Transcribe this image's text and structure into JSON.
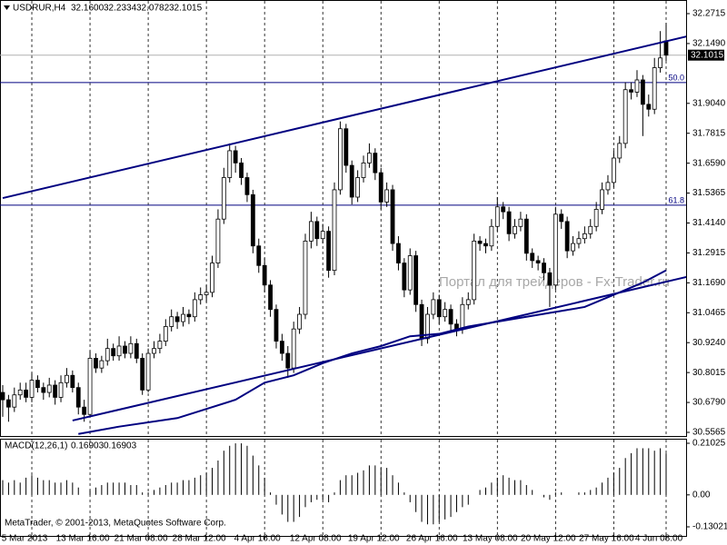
{
  "chart_data": {
    "type": "candlestick",
    "header": {
      "symbol": "USDRUR,H4",
      "ohlc": [
        "32.1600",
        "32.2334",
        "32.0782",
        "32.1015"
      ]
    },
    "watermark": "Портал для трейдеров - Fx-Trader.ru",
    "footer": "MetaTrader, © 2001-2013, MetaQuotes Software Corp.",
    "categories": [
      null,
      null,
      null,
      null,
      null,
      "5 Mar 2013",
      null,
      null,
      null,
      null,
      null,
      null,
      null,
      null,
      null,
      "13 Mar 16:00",
      null,
      null,
      null,
      null,
      null,
      null,
      null,
      null,
      null,
      "21 Mar 08:00",
      null,
      null,
      null,
      null,
      null,
      null,
      null,
      null,
      null,
      "28 Mar 12:00",
      null,
      null,
      null,
      null,
      null,
      null,
      null,
      null,
      null,
      "4 Apr 16:00",
      null,
      null,
      null,
      null,
      null,
      null,
      null,
      null,
      null,
      "12 Apr 08:00",
      null,
      null,
      null,
      null,
      null,
      null,
      null,
      null,
      null,
      "19 Apr 12:00",
      null,
      null,
      null,
      null,
      null,
      null,
      null,
      null,
      null,
      "26 Apr 16:00",
      null,
      null,
      null,
      null,
      null,
      null,
      null,
      null,
      null,
      "13 May 08:00",
      null,
      null,
      null,
      null,
      null,
      null,
      null,
      null,
      null,
      "20 May 12:00",
      null,
      null,
      null,
      null,
      null,
      null,
      null,
      null,
      null,
      "27 May 16:00",
      null,
      null,
      null,
      null,
      null,
      null,
      null,
      null,
      "4 Jun 08:00"
    ],
    "open": [
      30.72,
      30.69,
      30.66,
      30.71,
      30.73,
      30.7,
      30.77,
      30.74,
      30.72,
      30.75,
      30.7,
      30.76,
      30.79,
      30.74,
      30.66,
      30.63,
      30.86,
      30.82,
      30.85,
      30.9,
      30.87,
      30.91,
      30.88,
      30.92,
      30.86,
      30.73,
      30.88,
      30.9,
      30.93,
      30.99,
      31.03,
      31.01,
      31.04,
      31.03,
      31.1,
      31.12,
      31.13,
      31.25,
      31.43,
      31.6,
      31.71,
      31.66,
      31.6,
      31.53,
      31.32,
      31.24,
      31.16,
      31.06,
      30.93,
      30.88,
      30.82,
      30.98,
      31.04,
      31.34,
      31.42,
      31.35,
      31.38,
      31.22,
      31.55,
      31.8,
      31.65,
      31.52,
      31.6,
      31.66,
      31.7,
      31.62,
      31.5,
      31.55,
      31.33,
      31.25,
      31.14,
      31.28,
      31.08,
      30.94,
      31.04,
      31.1,
      31.03,
      31.06,
      31.0,
      30.98,
      31.08,
      31.1,
      31.34,
      31.33,
      31.32,
      31.4,
      31.48,
      31.46,
      31.37,
      31.4,
      31.43,
      31.29,
      31.26,
      31.25,
      31.21,
      31.16,
      31.45,
      31.42,
      31.3,
      31.33,
      31.35,
      31.37,
      31.4,
      31.47,
      31.55,
      31.58,
      31.68,
      31.74,
      31.96,
      31.95,
      32.0,
      31.9,
      31.88,
      32.05,
      32.16
    ],
    "high": [
      30.75,
      30.71,
      30.74,
      30.76,
      30.76,
      30.8,
      30.79,
      30.76,
      30.78,
      30.77,
      30.79,
      30.82,
      30.81,
      30.76,
      30.69,
      30.89,
      30.88,
      30.87,
      30.94,
      30.92,
      30.95,
      30.93,
      30.95,
      30.94,
      30.88,
      30.9,
      30.93,
      30.96,
      31.02,
      31.06,
      31.05,
      31.07,
      31.06,
      31.13,
      31.15,
      31.16,
      31.28,
      31.47,
      31.64,
      31.74,
      31.73,
      31.68,
      31.62,
      31.55,
      31.35,
      31.27,
      31.18,
      31.08,
      30.96,
      30.91,
      31.01,
      31.07,
      31.37,
      31.46,
      31.44,
      31.41,
      31.4,
      31.58,
      31.83,
      31.82,
      31.67,
      31.63,
      31.69,
      31.74,
      31.72,
      31.64,
      31.58,
      31.57,
      31.36,
      31.27,
      31.31,
      31.3,
      31.1,
      31.07,
      31.13,
      31.12,
      31.09,
      31.08,
      31.02,
      31.11,
      31.13,
      31.37,
      31.36,
      31.35,
      31.43,
      31.52,
      31.5,
      31.48,
      31.43,
      31.46,
      31.45,
      31.31,
      31.28,
      31.27,
      31.23,
      31.48,
      31.47,
      31.44,
      31.36,
      31.38,
      31.4,
      31.43,
      31.5,
      31.58,
      31.61,
      31.71,
      31.77,
      31.99,
      31.99,
      32.04,
      32.02,
      31.94,
      32.09,
      32.2,
      32.2334
    ],
    "low": [
      30.62,
      30.6,
      30.64,
      30.69,
      30.68,
      30.68,
      30.72,
      30.69,
      30.7,
      30.67,
      30.68,
      30.74,
      30.72,
      30.63,
      30.6,
      30.62,
      30.8,
      30.8,
      30.83,
      30.85,
      30.85,
      30.86,
      30.86,
      30.84,
      30.71,
      30.72,
      30.86,
      30.88,
      30.91,
      30.97,
      30.98,
      30.99,
      31.0,
      31.01,
      31.08,
      31.09,
      31.11,
      31.23,
      31.41,
      31.58,
      31.62,
      31.57,
      31.5,
      31.29,
      31.21,
      31.13,
      31.03,
      30.9,
      30.85,
      30.78,
      30.8,
      30.96,
      31.02,
      31.31,
      31.32,
      31.33,
      31.19,
      31.2,
      31.53,
      31.62,
      31.49,
      31.5,
      31.58,
      31.64,
      31.59,
      31.47,
      31.48,
      31.3,
      31.22,
      31.11,
      31.12,
      31.05,
      30.91,
      30.92,
      31.02,
      31.0,
      31.01,
      30.97,
      30.95,
      30.96,
      31.06,
      31.08,
      31.3,
      31.29,
      31.3,
      31.38,
      31.43,
      31.34,
      31.35,
      31.38,
      31.26,
      31.23,
      31.22,
      31.18,
      31.07,
      31.14,
      31.39,
      31.27,
      31.28,
      31.31,
      31.33,
      31.35,
      31.38,
      31.45,
      31.53,
      31.56,
      31.66,
      31.72,
      31.92,
      31.93,
      31.77,
      31.85,
      31.86,
      32.03,
      32.0782
    ],
    "close": [
      30.69,
      30.66,
      30.71,
      30.73,
      30.7,
      30.77,
      30.74,
      30.72,
      30.75,
      30.7,
      30.76,
      30.79,
      30.74,
      30.66,
      30.63,
      30.86,
      30.82,
      30.85,
      30.9,
      30.87,
      30.91,
      30.88,
      30.92,
      30.86,
      30.73,
      30.88,
      30.9,
      30.93,
      30.99,
      31.03,
      31.01,
      31.04,
      31.03,
      31.1,
      31.12,
      31.13,
      31.25,
      31.43,
      31.6,
      31.71,
      31.66,
      31.6,
      31.53,
      31.32,
      31.24,
      31.16,
      31.06,
      30.93,
      30.88,
      30.82,
      30.98,
      31.04,
      31.34,
      31.42,
      31.35,
      31.38,
      31.22,
      31.55,
      31.8,
      31.65,
      31.52,
      31.6,
      31.66,
      31.7,
      31.62,
      31.5,
      31.55,
      31.33,
      31.25,
      31.14,
      31.28,
      31.08,
      30.94,
      31.04,
      31.1,
      31.03,
      31.06,
      31.0,
      30.98,
      31.08,
      31.1,
      31.34,
      31.33,
      31.32,
      31.4,
      31.48,
      31.46,
      31.37,
      31.4,
      31.43,
      31.29,
      31.26,
      31.25,
      31.21,
      31.16,
      31.45,
      31.42,
      31.3,
      31.33,
      31.35,
      31.37,
      31.4,
      31.47,
      31.55,
      31.58,
      31.68,
      31.74,
      31.96,
      31.95,
      32.0,
      31.9,
      31.88,
      32.05,
      32.09,
      32.1015
    ],
    "up_color": "#ffffff",
    "down_color": "#000000",
    "line_color": "#000080",
    "ylim": [
      30.5565,
      32.2715
    ],
    "yticks": [
      32.2715,
      {
        "value": 32.149,
        "label": "32.1490"
      },
      {
        "value": 31.904,
        "label": "31.9040"
      },
      31.7815,
      {
        "value": 31.659,
        "label": "31.6590"
      },
      31.5365,
      {
        "value": 31.414,
        "label": "31.4140"
      },
      31.2915,
      {
        "value": 31.169,
        "label": "31.1690"
      },
      31.0465,
      {
        "value": 30.924,
        "label": "30.9240"
      },
      30.8015,
      {
        "value": 30.679,
        "label": "30.6790"
      },
      30.5565
    ],
    "fib_levels": [
      {
        "label": "50.0",
        "price": 31.989
      },
      {
        "label": "61.8",
        "price": 31.487
      }
    ],
    "trendlines": [
      {
        "x": [
          0,
          117.5
        ],
        "values": [
          31.516,
          32.178
        ]
      },
      {
        "x": [
          12,
          117.5
        ],
        "values": [
          30.605,
          31.193
        ]
      }
    ],
    "curve": {
      "x": [
        13,
        20,
        30,
        40,
        45,
        50,
        55,
        60,
        65,
        70,
        75,
        80,
        90,
        95,
        100,
        105,
        110,
        114
      ],
      "values": [
        30.55,
        30.58,
        30.615,
        30.69,
        30.76,
        30.79,
        30.84,
        30.88,
        30.91,
        30.95,
        30.96,
        30.99,
        31.03,
        31.05,
        31.07,
        31.12,
        31.17,
        31.22
      ]
    },
    "macd": {
      "type": "histogram",
      "label": "MACD(12,26,1)",
      "printed_values": [
        "0.16903",
        "0.16903"
      ],
      "values": [
        0.06,
        0.05,
        0.06,
        0.05,
        0.07,
        0.08,
        0.07,
        0.06,
        0.06,
        0.05,
        0.05,
        0.06,
        0.05,
        0.03,
        0.0,
        0.02,
        0.03,
        0.04,
        0.05,
        0.05,
        0.05,
        0.05,
        0.04,
        0.04,
        0.01,
        0.01,
        0.02,
        0.03,
        0.04,
        0.05,
        0.05,
        0.06,
        0.06,
        0.07,
        0.08,
        0.09,
        0.11,
        0.14,
        0.18,
        0.2,
        0.21,
        0.21,
        0.2,
        0.16,
        0.12,
        0.07,
        0.01,
        -0.04,
        -0.08,
        -0.11,
        -0.11,
        -0.09,
        -0.05,
        -0.03,
        -0.02,
        -0.02,
        -0.03,
        0.01,
        0.06,
        0.08,
        0.08,
        0.09,
        0.1,
        0.12,
        0.12,
        0.11,
        0.11,
        0.08,
        0.05,
        0.01,
        -0.03,
        -0.07,
        -0.11,
        -0.12,
        -0.12,
        -0.11,
        -0.1,
        -0.09,
        -0.07,
        -0.05,
        -0.04,
        0.0,
        0.02,
        0.03,
        0.05,
        0.07,
        0.08,
        0.07,
        0.06,
        0.06,
        0.04,
        0.02,
        0.0,
        -0.01,
        -0.02,
        0.01,
        0.01,
        0.0,
        0.0,
        0.01,
        0.01,
        0.02,
        0.03,
        0.05,
        0.07,
        0.09,
        0.11,
        0.15,
        0.17,
        0.19,
        0.19,
        0.19,
        0.18,
        0.19,
        0.16903
      ],
      "ylim": [
        -0.13021,
        0.21025
      ],
      "yticks": [
        0.21025,
        {
          "value": 0,
          "label": "0.00"
        },
        -0.13021
      ]
    }
  }
}
